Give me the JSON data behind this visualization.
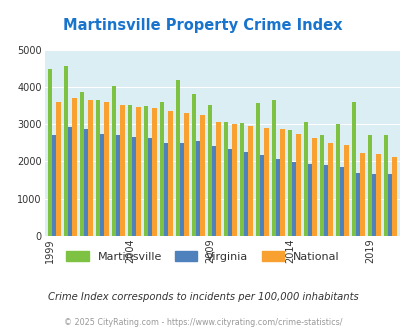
{
  "title": "Martinsville Property Crime Index",
  "title_color": "#1874cd",
  "subtitle": "Crime Index corresponds to incidents per 100,000 inhabitants",
  "footer": "© 2025 CityRating.com - https://www.cityrating.com/crime-statistics/",
  "years": [
    1999,
    2000,
    2001,
    2002,
    2003,
    2004,
    2005,
    2006,
    2007,
    2008,
    2009,
    2010,
    2011,
    2012,
    2013,
    2014,
    2015,
    2016,
    2017,
    2018,
    2019,
    2020
  ],
  "martinsville": [
    4480,
    4550,
    3850,
    3650,
    4020,
    3500,
    3480,
    3580,
    4180,
    3810,
    3500,
    3060,
    3030,
    3570,
    3650,
    2830,
    3060,
    2710,
    3010,
    3600,
    2700,
    2700
  ],
  "virginia": [
    2720,
    2930,
    2860,
    2740,
    2720,
    2660,
    2640,
    2500,
    2500,
    2540,
    2420,
    2320,
    2250,
    2170,
    2070,
    1980,
    1920,
    1890,
    1840,
    1680,
    1660,
    1660
  ],
  "national": [
    3600,
    3700,
    3650,
    3600,
    3520,
    3460,
    3440,
    3360,
    3310,
    3250,
    3060,
    3000,
    2950,
    2900,
    2860,
    2740,
    2620,
    2500,
    2450,
    2220,
    2190,
    2110
  ],
  "martinsville_color": "#7dc242",
  "virginia_color": "#4f81bd",
  "national_color": "#f9a130",
  "bg_color": "#daeef3",
  "ylim": [
    0,
    5000
  ],
  "yticks": [
    0,
    1000,
    2000,
    3000,
    4000,
    5000
  ],
  "bar_width": 0.27,
  "legend_labels": [
    "Martinsville",
    "Virginia",
    "National"
  ],
  "subtitle_color": "#333333",
  "footer_color": "#999999",
  "grid_color": "#ffffff",
  "label_years": [
    1999,
    2004,
    2009,
    2014,
    2019
  ]
}
